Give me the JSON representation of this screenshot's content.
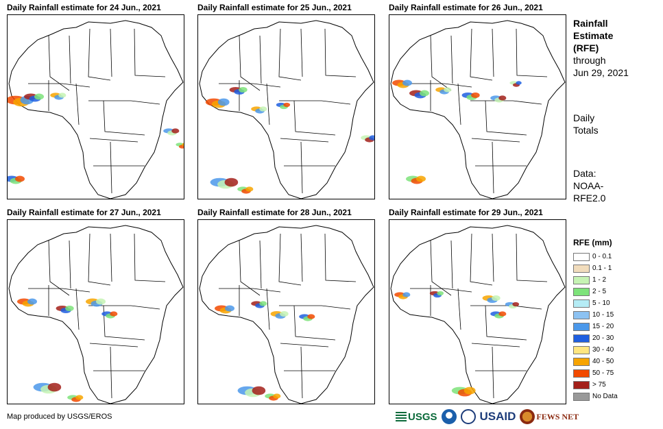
{
  "panels": [
    {
      "title": "Daily Rainfall estimate for 24 Jun., 2021"
    },
    {
      "title": "Daily Rainfall estimate for 25 Jun., 2021"
    },
    {
      "title": "Daily Rainfall estimate for 26 Jun., 2021"
    },
    {
      "title": "Daily Rainfall estimate for 27 Jun., 2021"
    },
    {
      "title": "Daily Rainfall estimate for 28 Jun., 2021"
    },
    {
      "title": "Daily Rainfall estimate for 29 Jun., 2021"
    }
  ],
  "side": {
    "title_line1": "Rainfall",
    "title_line2": "Estimate",
    "title_line3": "(RFE)",
    "through_label": "through",
    "through_date": "Jun 29, 2021",
    "totals_line1": "Daily",
    "totals_line2": "Totals",
    "data_line1": "Data:",
    "data_line2": "NOAA-",
    "data_line3": "RFE2.0"
  },
  "legend": {
    "title": "RFE (mm)",
    "items": [
      {
        "label": "0 - 0.1",
        "color": "#ffffff"
      },
      {
        "label": "0.1 - 1",
        "color": "#f1dcbc"
      },
      {
        "label": "1 - 2",
        "color": "#c6f3b4"
      },
      {
        "label": "2 - 5",
        "color": "#7ee37a"
      },
      {
        "label": "5 - 10",
        "color": "#b5ecf5"
      },
      {
        "label": "10 - 15",
        "color": "#8cc2f2"
      },
      {
        "label": "15 - 20",
        "color": "#4b98ea"
      },
      {
        "label": "20 - 30",
        "color": "#1f5fe0"
      },
      {
        "label": "30 - 40",
        "color": "#ffe680"
      },
      {
        "label": "40 - 50",
        "color": "#f7a400"
      },
      {
        "label": "50 - 75",
        "color": "#f24a00"
      },
      {
        "label": "> 75",
        "color": "#a3201a"
      },
      {
        "label": "No Data",
        "color": "#999999"
      }
    ]
  },
  "credit": "Map produced by USGS/EROS",
  "logos": {
    "usgs": "USGS",
    "usaid": "USAID",
    "fews": "FEWS NET"
  }
}
